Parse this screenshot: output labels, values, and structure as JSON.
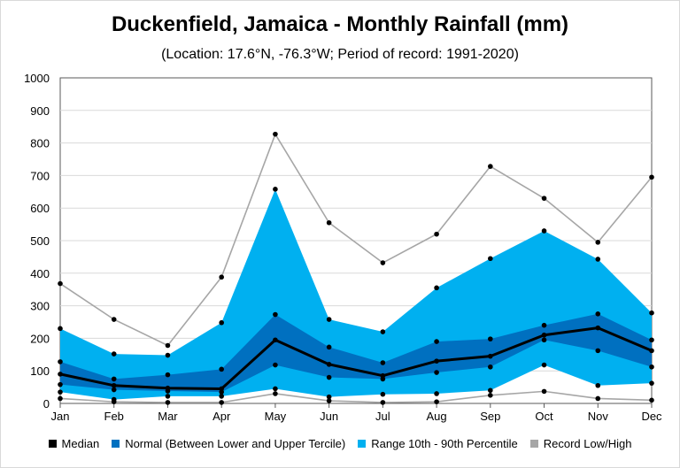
{
  "title": "Duckenfield, Jamaica - Monthly Rainfall (mm)",
  "subtitle": "(Location: 17.6°N, -76.3°W; Period of record: 1991-2020)",
  "colors": {
    "median": "#000000",
    "normal": "#0070c0",
    "range": "#00b0f0",
    "record": "#a6a6a6",
    "grid": "#d9d9d9",
    "axis": "#595959"
  },
  "legend": [
    {
      "label": "Median",
      "color": "#000000"
    },
    {
      "label": "Normal (Between Lower and Upper Tercile)",
      "color": "#0070c0"
    },
    {
      "label": "Range 10th - 90th Percentile",
      "color": "#00b0f0"
    },
    {
      "label": "Record Low/High",
      "color": "#a6a6a6"
    }
  ],
  "chart_data": {
    "type": "area",
    "categories": [
      "Jan",
      "Feb",
      "Mar",
      "Apr",
      "May",
      "Jun",
      "Jul",
      "Aug",
      "Sep",
      "Oct",
      "Nov",
      "Dec"
    ],
    "ylim": [
      0,
      1000
    ],
    "yticks": [
      "0",
      "100",
      "200",
      "300",
      "400",
      "500",
      "600",
      "700",
      "800",
      "900",
      "1000"
    ],
    "grid": true,
    "series": [
      {
        "name": "Record Low/High",
        "low": [
          15,
          5,
          3,
          3,
          30,
          8,
          3,
          5,
          25,
          37,
          15,
          10
        ],
        "high": [
          368,
          258,
          178,
          388,
          827,
          555,
          432,
          520,
          728,
          630,
          495,
          695
        ]
      },
      {
        "name": "Range 10th - 90th Percentile",
        "low": [
          35,
          12,
          22,
          22,
          45,
          20,
          28,
          30,
          40,
          118,
          55,
          62
        ],
        "high": [
          230,
          152,
          148,
          248,
          658,
          258,
          220,
          355,
          445,
          530,
          443,
          278
        ]
      },
      {
        "name": "Normal (Between Lower and Upper Tercile)",
        "low": [
          58,
          42,
          38,
          35,
          118,
          80,
          75,
          95,
          112,
          195,
          162,
          112
        ],
        "high": [
          128,
          75,
          88,
          105,
          273,
          173,
          125,
          190,
          198,
          240,
          275,
          195
        ]
      },
      {
        "name": "Median",
        "values": [
          90,
          55,
          47,
          45,
          195,
          120,
          85,
          130,
          145,
          210,
          232,
          162
        ]
      }
    ]
  }
}
